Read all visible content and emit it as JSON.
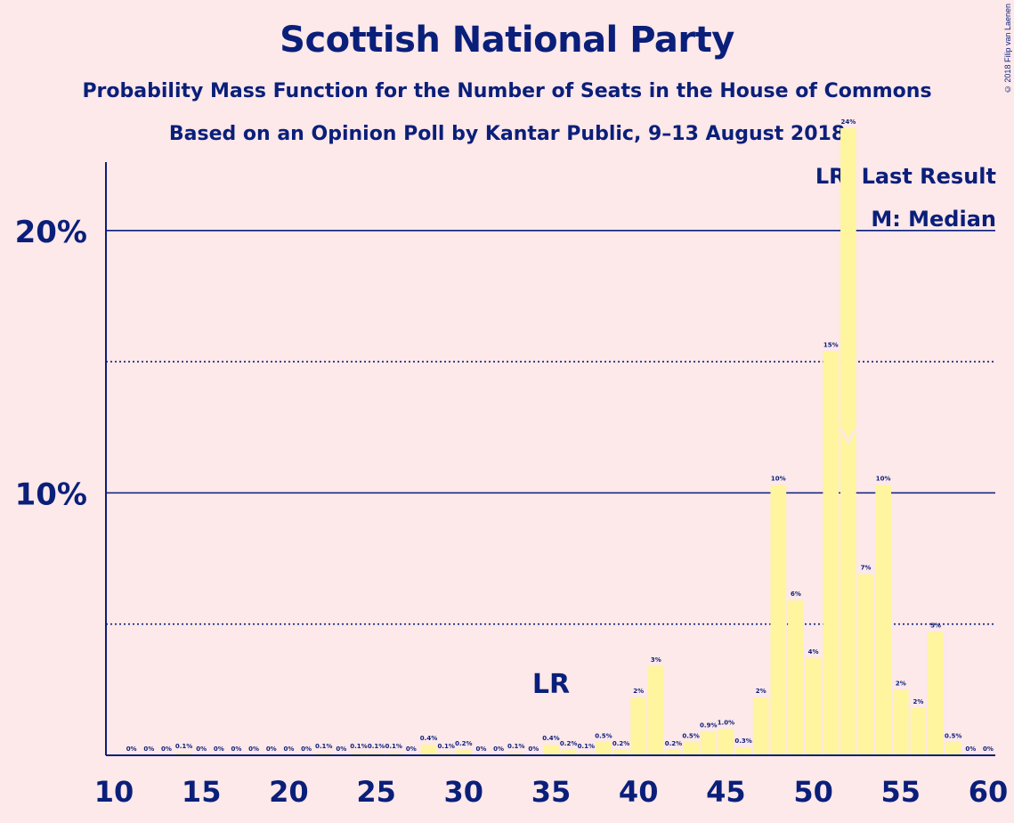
{
  "title": "Scottish National Party",
  "subtitle": "Probability Mass Function for the Number of Seats in the House of Commons",
  "subtitle2": "Based on an Opinion Poll by Kantar Public, 9–13 August 2018",
  "copyright": "© 2018 Filip van Laenen",
  "legend": {
    "last_result": "LR: Last Result",
    "median": "M: Median"
  },
  "colors": {
    "background": "#fde8ea",
    "bar": "#fff59e",
    "text": "#0a1f7a"
  },
  "chart_data": {
    "type": "bar",
    "xlim": [
      10,
      60
    ],
    "ylim": [
      0,
      26
    ],
    "x_ticks": [
      10,
      15,
      20,
      25,
      30,
      35,
      40,
      45,
      50,
      55,
      60
    ],
    "y_ticks_labeled": [
      {
        "value": 10,
        "label": "10%"
      },
      {
        "value": 20,
        "label": "20%"
      }
    ],
    "y_gridlines_solid": [
      10,
      20
    ],
    "y_gridlines_dotted": [
      5,
      15
    ],
    "x": [
      11,
      12,
      13,
      14,
      15,
      16,
      17,
      18,
      19,
      20,
      21,
      22,
      23,
      24,
      25,
      26,
      27,
      28,
      29,
      30,
      31,
      32,
      33,
      34,
      35,
      36,
      37,
      38,
      39,
      40,
      41,
      42,
      43,
      44,
      45,
      46,
      47,
      48,
      49,
      50,
      51,
      52,
      53,
      54,
      55,
      56,
      57,
      58,
      59,
      60
    ],
    "values": [
      0,
      0,
      0,
      0.1,
      0,
      0,
      0,
      0,
      0,
      0,
      0,
      0.1,
      0,
      0.1,
      0.1,
      0.1,
      0,
      0.4,
      0.1,
      0.2,
      0,
      0,
      0.1,
      0,
      0.4,
      0.2,
      0.1,
      0.5,
      0.2,
      2.2,
      3.4,
      0.2,
      0.5,
      0.9,
      1.0,
      0.3,
      2.2,
      10.3,
      5.9,
      3.7,
      15.4,
      23.9,
      6.9,
      10.3,
      2.5,
      1.8,
      4.7,
      0.5,
      0,
      0
    ],
    "labels": [
      "0%",
      "0%",
      "0%",
      "0.1%",
      "0%",
      "0%",
      "0%",
      "0%",
      "0%",
      "0%",
      "0%",
      "0.1%",
      "0%",
      "0.1%",
      "0.1%",
      "0.1%",
      "0%",
      "0.4%",
      "0.1%",
      "0.2%",
      "0%",
      "0%",
      "0.1%",
      "0%",
      "0.4%",
      "0.2%",
      "0.1%",
      "0.5%",
      "0.2%",
      "2%",
      "3%",
      "0.2%",
      "0.5%",
      "0.9%",
      "1.0%",
      "0.3%",
      "2%",
      "10%",
      "6%",
      "4%",
      "15%",
      "24%",
      "7%",
      "10%",
      "2%",
      "2%",
      "5%",
      "0.5%",
      "0%",
      "0%"
    ],
    "last_result": {
      "x": 35,
      "label": "LR"
    },
    "median": {
      "x": 52
    }
  }
}
